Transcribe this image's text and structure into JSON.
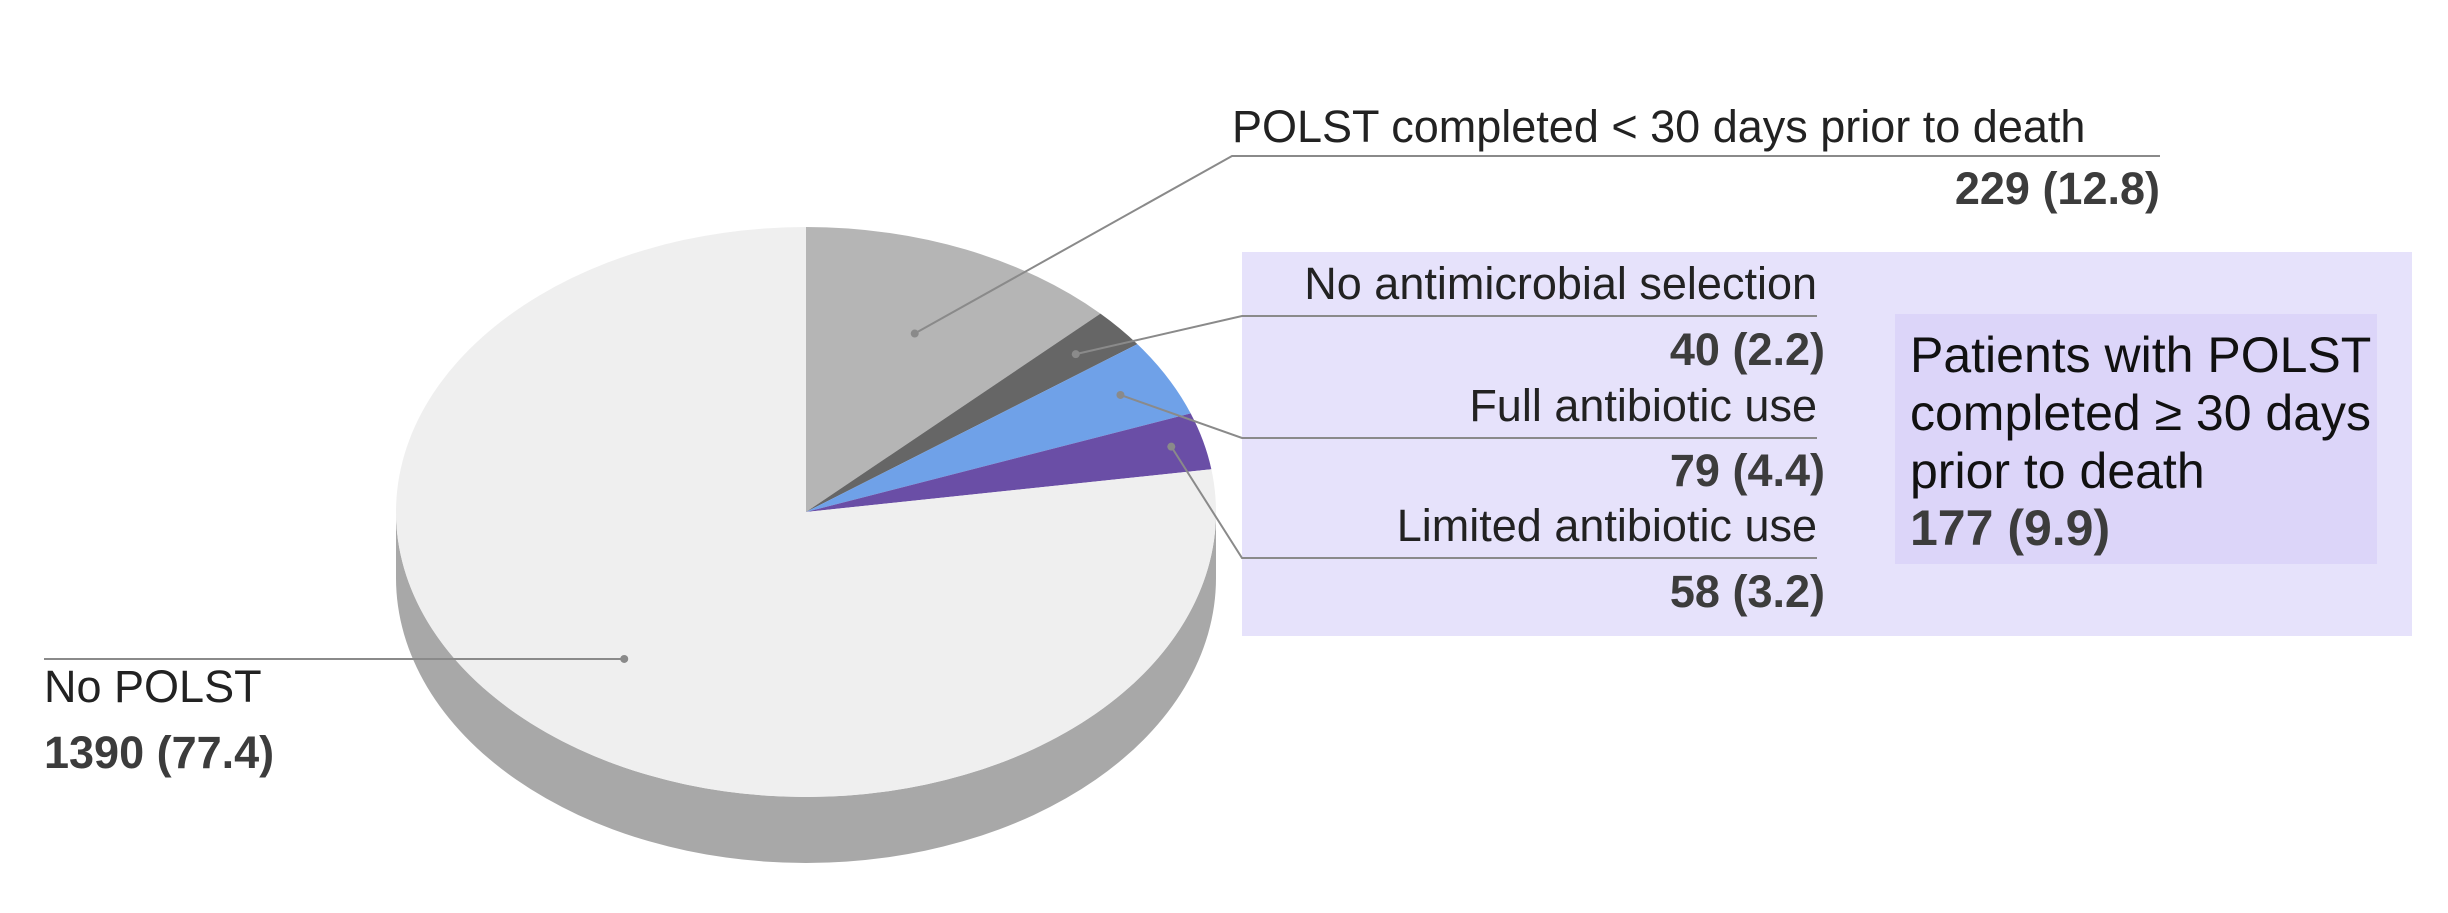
{
  "chart_data": {
    "type": "pie",
    "title": "",
    "slices": [
      {
        "label": "POLST completed < 30 days prior to death",
        "value_text": "229 (12.8)",
        "count": 229,
        "percent": 12.8,
        "color": "#b5b5b5"
      },
      {
        "label": "No antimicrobial selection",
        "value_text": "40 (2.2)",
        "count": 40,
        "percent": 2.2,
        "color": "#666666"
      },
      {
        "label": "Full antibiotic use",
        "value_text": "79 (4.4)",
        "count": 79,
        "percent": 4.4,
        "color": "#6fa1e8"
      },
      {
        "label": "Limited antibiotic use",
        "value_text": "58 (3.2)",
        "count": 58,
        "percent": 3.2,
        "color": "#6a4ea6"
      },
      {
        "label": "No POLST",
        "value_text": "1390 (77.4)",
        "count": 1390,
        "percent": 77.4,
        "color": "#efefef"
      }
    ],
    "group": {
      "label_lines": [
        "Patients with POLST",
        "completed ≥ 30 days",
        "prior to death"
      ],
      "value_text": "177 (9.9)",
      "count": 177,
      "percent": 9.9,
      "background": "#e6e2fb",
      "inner_background": "#dcd5f9"
    },
    "side_color": "#a8a8a8",
    "leader_color": "#8a8a8a"
  }
}
